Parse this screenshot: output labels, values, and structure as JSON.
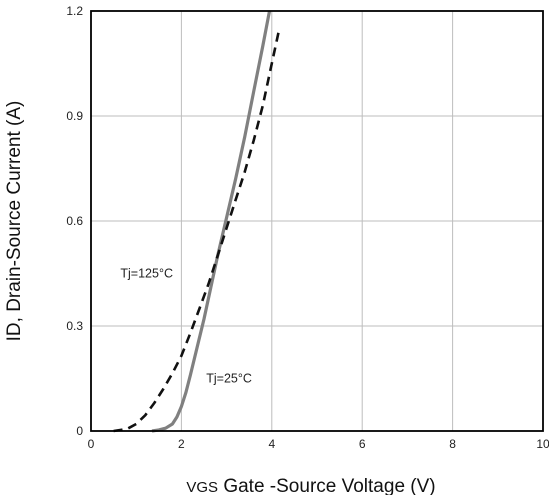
{
  "chart_data": {
    "type": "line",
    "title": "",
    "xlabel_sub": "VGS",
    "xlabel_rest": " Gate -Source Voltage (V)",
    "ylabel": "ID, Drain-Source Current (A)",
    "xlim": [
      0,
      10
    ],
    "ylim": [
      0,
      1.2
    ],
    "x_ticks": [
      0,
      2,
      4,
      6,
      8,
      10
    ],
    "x_tick_labels": [
      "0",
      "2",
      "4",
      "6",
      "8",
      "10"
    ],
    "y_ticks": [
      0,
      0.3,
      0.6,
      0.9,
      1.2
    ],
    "y_tick_labels": [
      "0",
      "0.3",
      "0.6",
      "0.9",
      "1.2"
    ],
    "grid": true,
    "legend": "none",
    "series": [
      {
        "name": "Tj=25°C",
        "style": "solid",
        "color": "#808080",
        "x": [
          1.35,
          1.5,
          1.65,
          1.8,
          1.9,
          2.0,
          2.1,
          2.2,
          2.35,
          2.5,
          2.65,
          2.8,
          3.0,
          3.2,
          3.4,
          3.6,
          3.8,
          3.95
        ],
        "y": [
          0.0,
          0.003,
          0.008,
          0.02,
          0.04,
          0.07,
          0.11,
          0.16,
          0.24,
          0.32,
          0.41,
          0.5,
          0.61,
          0.72,
          0.84,
          0.97,
          1.1,
          1.2
        ]
      },
      {
        "name": "Tj=125°C",
        "style": "dashed",
        "color": "#111111",
        "x": [
          0.5,
          0.8,
          1.0,
          1.2,
          1.4,
          1.6,
          1.8,
          2.0,
          2.2,
          2.4,
          2.6,
          2.8,
          3.0,
          3.2,
          3.4,
          3.6,
          3.8,
          4.0,
          4.15
        ],
        "y": [
          0.0,
          0.006,
          0.02,
          0.045,
          0.08,
          0.12,
          0.165,
          0.215,
          0.28,
          0.35,
          0.42,
          0.5,
          0.58,
          0.66,
          0.74,
          0.83,
          0.93,
          1.05,
          1.14
        ]
      }
    ],
    "annotations": [
      {
        "text": "Tj=125°C",
        "x": 0.65,
        "y": 0.45
      },
      {
        "text": "Tj=25°C",
        "x": 2.55,
        "y": 0.15
      }
    ]
  }
}
